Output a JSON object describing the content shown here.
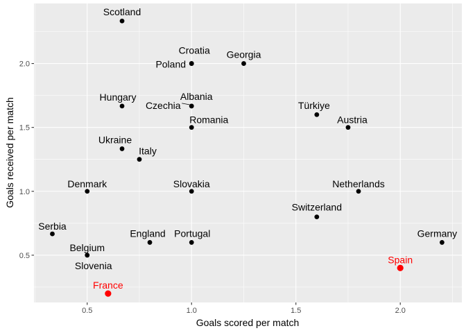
{
  "chart_data": {
    "type": "scatter",
    "title": "",
    "xlabel": "Goals scored per match",
    "ylabel": "Goals received per match",
    "xlim": [
      0.245,
      2.295
    ],
    "ylim": [
      0.13,
      2.47
    ],
    "xticks": [
      0.5,
      1.0,
      1.5,
      2.0
    ],
    "xtick_labels": [
      "0.5",
      "1.0",
      "1.5",
      "2.0"
    ],
    "yticks": [
      0.5,
      1.0,
      1.5,
      2.0
    ],
    "ytick_labels": [
      "0.5",
      "1.0",
      "1.5",
      "2.0"
    ],
    "grid": true,
    "legend": "none",
    "colors": {
      "panel_background": "#ebebeb",
      "grid_major": "#ffffff",
      "point_default": "#000000",
      "point_highlight": "#ff0000"
    },
    "points": [
      {
        "label": "Scotland",
        "x": 0.667,
        "y": 2.333,
        "highlight": false
      },
      {
        "label": "Croatia",
        "x": 1.0,
        "y": 2.0,
        "highlight": false
      },
      {
        "label": "Poland",
        "x": 1.0,
        "y": 2.0,
        "highlight": false
      },
      {
        "label": "Georgia",
        "x": 1.25,
        "y": 2.0,
        "highlight": false
      },
      {
        "label": "Hungary",
        "x": 0.667,
        "y": 1.667,
        "highlight": false
      },
      {
        "label": "Albania",
        "x": 1.0,
        "y": 1.667,
        "highlight": false
      },
      {
        "label": "Czechia",
        "x": 1.0,
        "y": 1.667,
        "highlight": false
      },
      {
        "label": "Romania",
        "x": 1.0,
        "y": 1.5,
        "highlight": false
      },
      {
        "label": "Türkiye",
        "x": 1.6,
        "y": 1.6,
        "highlight": false
      },
      {
        "label": "Austria",
        "x": 1.75,
        "y": 1.5,
        "highlight": false
      },
      {
        "label": "Ukraine",
        "x": 0.667,
        "y": 1.333,
        "highlight": false
      },
      {
        "label": "Italy",
        "x": 0.75,
        "y": 1.25,
        "highlight": false
      },
      {
        "label": "Denmark",
        "x": 0.5,
        "y": 1.0,
        "highlight": false
      },
      {
        "label": "Slovakia",
        "x": 1.0,
        "y": 1.0,
        "highlight": false
      },
      {
        "label": "Netherlands",
        "x": 1.8,
        "y": 1.0,
        "highlight": false
      },
      {
        "label": "Switzerland",
        "x": 1.6,
        "y": 0.8,
        "highlight": false
      },
      {
        "label": "Serbia",
        "x": 0.333,
        "y": 0.667,
        "highlight": false
      },
      {
        "label": "England",
        "x": 0.8,
        "y": 0.6,
        "highlight": false
      },
      {
        "label": "Portugal",
        "x": 1.0,
        "y": 0.6,
        "highlight": false
      },
      {
        "label": "Germany",
        "x": 2.2,
        "y": 0.6,
        "highlight": false
      },
      {
        "label": "Belgium",
        "x": 0.5,
        "y": 0.5,
        "highlight": false
      },
      {
        "label": "Slovenia",
        "x": 0.5,
        "y": 0.5,
        "highlight": false
      },
      {
        "label": "Spain",
        "x": 2.0,
        "y": 0.4,
        "highlight": true
      },
      {
        "label": "France",
        "x": 0.6,
        "y": 0.2,
        "highlight": true
      }
    ]
  }
}
